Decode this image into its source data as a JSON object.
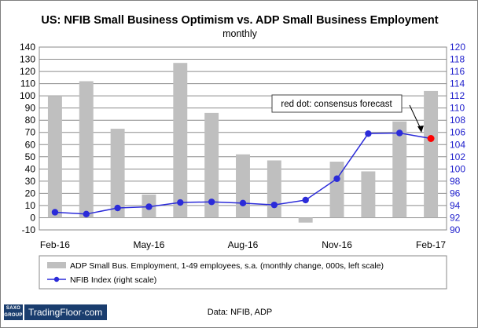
{
  "chart_data": {
    "type": "bar+line",
    "title": "US: NFIB Small Business Optimism vs. ADP Small Business Employment",
    "subtitle": "monthly",
    "categories": [
      "Feb-16",
      "Mar-16",
      "Apr-16",
      "May-16",
      "Jun-16",
      "Jul-16",
      "Aug-16",
      "Sep-16",
      "Oct-16",
      "Nov-16",
      "Dec-16",
      "Jan-17",
      "Feb-17"
    ],
    "x_tick_labels": [
      "Feb-16",
      "May-16",
      "Aug-16",
      "Nov-16",
      "Feb-17"
    ],
    "x_tick_indices": [
      0,
      3,
      6,
      9,
      12
    ],
    "series": [
      {
        "name": "ADP Small Bus. Employment, 1-49 employees, s.a. (monthly change, 000s, left scale)",
        "type": "bar",
        "axis": "left",
        "values": [
          100,
          112,
          73,
          19,
          127,
          86,
          52,
          47,
          -4,
          46,
          38,
          79,
          104
        ]
      },
      {
        "name": "NFIB Index (right scale)",
        "type": "line",
        "axis": "right",
        "values": [
          92.9,
          92.6,
          93.6,
          93.8,
          94.5,
          94.6,
          94.4,
          94.1,
          94.9,
          98.4,
          105.8,
          105.9,
          null
        ],
        "forecast": {
          "index": 12,
          "value": 105.0
        }
      }
    ],
    "left_axis": {
      "min": -10,
      "max": 140,
      "step": 10
    },
    "right_axis": {
      "min": 90,
      "max": 120,
      "step": 2
    },
    "annotation": "red dot: consensus forecast",
    "legend_position": "bottom",
    "source": "Data: NFIB, ADP",
    "colors": {
      "bars": "#bfbfbf",
      "line": "#2b2bd9",
      "forecast": "#ff0000",
      "right_axis": "#1f1fcc"
    }
  },
  "branding": {
    "logo_mark": "SAXO GROUP",
    "logo_text": "TradingFloor·com"
  }
}
